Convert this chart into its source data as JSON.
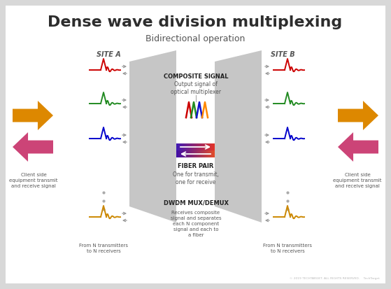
{
  "title": "Dense wave division multiplexing",
  "subtitle": "Bidirectional operation",
  "bg_outer": "#d8d8d8",
  "bg_panel": "#ffffff",
  "site_a_label": "SITE A",
  "site_b_label": "SITE B",
  "composite_signal_title": "COMPOSITE SIGNAL",
  "composite_signal_text": "Output signal of\noptical multiplexer",
  "fiber_pair_title": "FIBER PAIR",
  "fiber_pair_text": "One for transmit,\none for receive",
  "dwdm_title": "DWDM MUX/DEMUX",
  "dwdm_text": "Receives composite\nsignal and separates\neach N component\nsignal and each to\na fiber",
  "client_text": "Client side\nequipment transmit\nand receive signal",
  "from_n_text": "From N transmitters\nto N receivers",
  "trap_color": "#c0c0c0",
  "fiber_top_left": "#5050bb",
  "fiber_top_right": "#dd8800",
  "fiber_bot_left": "#5050bb",
  "fiber_bot_right": "#dd8800",
  "arrow_orange": "#dd7700",
  "arrow_red_purple": "#cc3366",
  "title_fontsize": 16,
  "subtitle_fontsize": 9,
  "label_fontsize": 6,
  "small_fontsize": 5.5,
  "wave_colors_left": [
    "#cc0000",
    "#228B22",
    "#0000cc",
    "#cc8800"
  ],
  "wave_colors_right": [
    "#cc0000",
    "#228B22",
    "#0000cc",
    "#cc8800"
  ],
  "site_label_color": "#555555",
  "text_color": "#444444",
  "arrow_gray": "#999999"
}
